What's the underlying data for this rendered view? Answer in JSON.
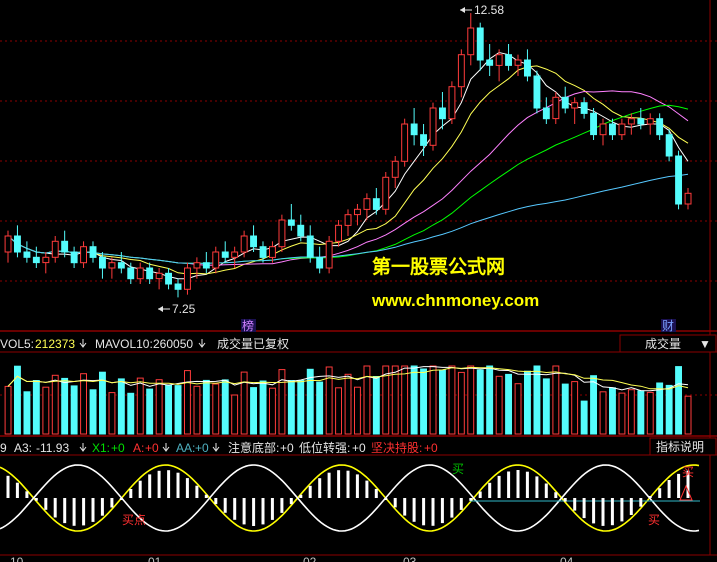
{
  "colors": {
    "up": "#ff3b3b",
    "down": "#54fcfc",
    "ma5": "#ffffff",
    "ma10": "#ffff54",
    "ma20": "#ff80ff",
    "ma30": "#00ff00",
    "ma60": "#56c8ff",
    "grid": "#8b0000",
    "sine_yellow": "#ffff00",
    "sine_white": "#ffffff",
    "flat_line": "#2fb7c8",
    "text_white": "#e6e6e6",
    "text_yellow": "#ffff54",
    "text_green": "#00e000",
    "text_teal": "#4fb0c0",
    "text_red": "#ff3030",
    "tag_purple": "#d080ff",
    "tag_blue": "#7aa0ff"
  },
  "price_panel": {
    "high_label": "12.58",
    "low_label": "7.25",
    "event_tags": [
      "榜",
      "财"
    ],
    "watermark_title": "第一股票公式网",
    "watermark_url": "www.chnmoney.com"
  },
  "volume_panel": {
    "vol5_label": "VOL5:",
    "vol5_value": "212373",
    "mavol10_label": "MAVOL10:",
    "mavol10_value": "260050",
    "status": "成交量已复权",
    "selector": "成交量",
    "selector_arrow": "▼"
  },
  "indicator_panel": {
    "first_partial": "9",
    "a3_label": "A3:",
    "a3_value": "-11.93",
    "x1_label": "X1:",
    "x1_value": "+0",
    "a_label": "A:",
    "a_value": "+0",
    "aa_label": "AA:",
    "aa_value": "+0",
    "note_bottom_label": "注意底部:",
    "note_bottom_value": "+0",
    "low_turn_label": "低位转强:",
    "low_turn_value": "+0",
    "firm_hold_label": "坚决持股:",
    "firm_hold_value": "+0",
    "explain_button": "指标说明",
    "buy_labels": [
      "买点",
      "买",
      "买",
      "买"
    ]
  },
  "date_axis": [
    "10",
    "01",
    "02",
    "03",
    "04"
  ],
  "chart_data": [
    {
      "type": "candlestick",
      "title": "",
      "high_marker": 12.58,
      "low_marker": 7.25,
      "bars": [
        {
          "o": 8.1,
          "h": 8.5,
          "l": 7.9,
          "c": 8.4
        },
        {
          "o": 8.4,
          "h": 8.6,
          "l": 8.0,
          "c": 8.1
        },
        {
          "o": 8.1,
          "h": 8.3,
          "l": 7.9,
          "c": 8.0
        },
        {
          "o": 8.0,
          "h": 8.2,
          "l": 7.8,
          "c": 7.9
        },
        {
          "o": 7.9,
          "h": 8.1,
          "l": 7.7,
          "c": 8.0
        },
        {
          "o": 8.0,
          "h": 8.4,
          "l": 7.9,
          "c": 8.3
        },
        {
          "o": 8.3,
          "h": 8.5,
          "l": 8.0,
          "c": 8.1
        },
        {
          "o": 8.1,
          "h": 8.2,
          "l": 7.8,
          "c": 7.9
        },
        {
          "o": 7.9,
          "h": 8.3,
          "l": 7.8,
          "c": 8.2
        },
        {
          "o": 8.2,
          "h": 8.3,
          "l": 7.9,
          "c": 8.0
        },
        {
          "o": 8.0,
          "h": 8.1,
          "l": 7.6,
          "c": 7.8
        },
        {
          "o": 7.8,
          "h": 8.0,
          "l": 7.6,
          "c": 7.9
        },
        {
          "o": 7.9,
          "h": 8.1,
          "l": 7.7,
          "c": 7.8
        },
        {
          "o": 7.8,
          "h": 7.9,
          "l": 7.5,
          "c": 7.6
        },
        {
          "o": 7.6,
          "h": 7.9,
          "l": 7.5,
          "c": 7.8
        },
        {
          "o": 7.8,
          "h": 7.9,
          "l": 7.5,
          "c": 7.6
        },
        {
          "o": 7.6,
          "h": 7.8,
          "l": 7.4,
          "c": 7.7
        },
        {
          "o": 7.7,
          "h": 7.8,
          "l": 7.4,
          "c": 7.5
        },
        {
          "o": 7.5,
          "h": 7.6,
          "l": 7.25,
          "c": 7.4
        },
        {
          "o": 7.4,
          "h": 7.9,
          "l": 7.3,
          "c": 7.8
        },
        {
          "o": 7.8,
          "h": 8.0,
          "l": 7.6,
          "c": 7.9
        },
        {
          "o": 7.9,
          "h": 8.1,
          "l": 7.7,
          "c": 7.8
        },
        {
          "o": 7.8,
          "h": 8.2,
          "l": 7.7,
          "c": 8.1
        },
        {
          "o": 8.1,
          "h": 8.3,
          "l": 7.9,
          "c": 8.0
        },
        {
          "o": 8.0,
          "h": 8.2,
          "l": 7.8,
          "c": 8.1
        },
        {
          "o": 8.1,
          "h": 8.5,
          "l": 8.0,
          "c": 8.4
        },
        {
          "o": 8.4,
          "h": 8.6,
          "l": 8.1,
          "c": 8.2
        },
        {
          "o": 8.2,
          "h": 8.3,
          "l": 7.9,
          "c": 8.0
        },
        {
          "o": 8.0,
          "h": 8.3,
          "l": 7.9,
          "c": 8.2
        },
        {
          "o": 8.2,
          "h": 8.8,
          "l": 8.1,
          "c": 8.7
        },
        {
          "o": 8.7,
          "h": 9.0,
          "l": 8.5,
          "c": 8.6
        },
        {
          "o": 8.6,
          "h": 8.8,
          "l": 8.3,
          "c": 8.4
        },
        {
          "o": 8.4,
          "h": 8.6,
          "l": 7.9,
          "c": 8.0
        },
        {
          "o": 8.0,
          "h": 8.2,
          "l": 7.7,
          "c": 7.8
        },
        {
          "o": 7.8,
          "h": 8.4,
          "l": 7.7,
          "c": 8.3
        },
        {
          "o": 8.3,
          "h": 8.7,
          "l": 8.2,
          "c": 8.6
        },
        {
          "o": 8.6,
          "h": 8.9,
          "l": 8.4,
          "c": 8.8
        },
        {
          "o": 8.8,
          "h": 9.0,
          "l": 8.6,
          "c": 8.9
        },
        {
          "o": 8.9,
          "h": 9.2,
          "l": 8.7,
          "c": 9.1
        },
        {
          "o": 9.1,
          "h": 9.3,
          "l": 8.8,
          "c": 8.9
        },
        {
          "o": 8.9,
          "h": 9.6,
          "l": 8.8,
          "c": 9.5
        },
        {
          "o": 9.5,
          "h": 9.9,
          "l": 9.3,
          "c": 9.8
        },
        {
          "o": 9.8,
          "h": 10.6,
          "l": 9.7,
          "c": 10.5
        },
        {
          "o": 10.5,
          "h": 10.8,
          "l": 10.1,
          "c": 10.3
        },
        {
          "o": 10.3,
          "h": 10.5,
          "l": 9.9,
          "c": 10.1
        },
        {
          "o": 10.1,
          "h": 10.9,
          "l": 10.0,
          "c": 10.8
        },
        {
          "o": 10.8,
          "h": 11.1,
          "l": 10.4,
          "c": 10.6
        },
        {
          "o": 10.6,
          "h": 11.3,
          "l": 10.5,
          "c": 11.2
        },
        {
          "o": 11.2,
          "h": 11.9,
          "l": 11.0,
          "c": 11.8
        },
        {
          "o": 11.8,
          "h": 12.58,
          "l": 11.6,
          "c": 12.3
        },
        {
          "o": 12.3,
          "h": 12.4,
          "l": 11.5,
          "c": 11.7
        },
        {
          "o": 11.7,
          "h": 12.0,
          "l": 11.4,
          "c": 11.6
        },
        {
          "o": 11.6,
          "h": 11.9,
          "l": 11.3,
          "c": 11.8
        },
        {
          "o": 11.8,
          "h": 12.0,
          "l": 11.5,
          "c": 11.6
        },
        {
          "o": 11.6,
          "h": 11.8,
          "l": 11.4,
          "c": 11.7
        },
        {
          "o": 11.7,
          "h": 11.9,
          "l": 11.3,
          "c": 11.4
        },
        {
          "o": 11.4,
          "h": 11.5,
          "l": 10.7,
          "c": 10.8
        },
        {
          "o": 10.8,
          "h": 11.0,
          "l": 10.5,
          "c": 10.6
        },
        {
          "o": 10.6,
          "h": 11.1,
          "l": 10.5,
          "c": 11.0
        },
        {
          "o": 11.0,
          "h": 11.2,
          "l": 10.7,
          "c": 10.8
        },
        {
          "o": 10.8,
          "h": 11.0,
          "l": 10.5,
          "c": 10.9
        },
        {
          "o": 10.9,
          "h": 11.0,
          "l": 10.6,
          "c": 10.7
        },
        {
          "o": 10.7,
          "h": 10.8,
          "l": 10.2,
          "c": 10.3
        },
        {
          "o": 10.3,
          "h": 10.6,
          "l": 10.1,
          "c": 10.5
        },
        {
          "o": 10.5,
          "h": 10.6,
          "l": 10.2,
          "c": 10.3
        },
        {
          "o": 10.3,
          "h": 10.6,
          "l": 10.2,
          "c": 10.5
        },
        {
          "o": 10.5,
          "h": 10.7,
          "l": 10.3,
          "c": 10.6
        },
        {
          "o": 10.6,
          "h": 10.8,
          "l": 10.4,
          "c": 10.5
        },
        {
          "o": 10.5,
          "h": 10.7,
          "l": 10.3,
          "c": 10.6
        },
        {
          "o": 10.6,
          "h": 10.7,
          "l": 10.2,
          "c": 10.3
        },
        {
          "o": 10.3,
          "h": 10.4,
          "l": 9.8,
          "c": 9.9
        },
        {
          "o": 9.9,
          "h": 10.0,
          "l": 8.9,
          "c": 9.0
        },
        {
          "o": 9.0,
          "h": 9.3,
          "l": 8.9,
          "c": 9.2
        }
      ],
      "moving_averages": [
        "MA5",
        "MA10",
        "MA20",
        "MA30",
        "MA60"
      ]
    },
    {
      "type": "bar",
      "title": "成交量",
      "series": [
        {
          "name": "VOL5",
          "value": 212373
        },
        {
          "name": "MAVOL10",
          "value": 260050
        }
      ]
    },
    {
      "type": "line",
      "title": "",
      "series": [
        {
          "name": "A3",
          "value": -11.93
        },
        {
          "name": "X1",
          "value": 0
        },
        {
          "name": "A",
          "value": 0
        },
        {
          "name": "AA",
          "value": 0
        }
      ]
    }
  ]
}
